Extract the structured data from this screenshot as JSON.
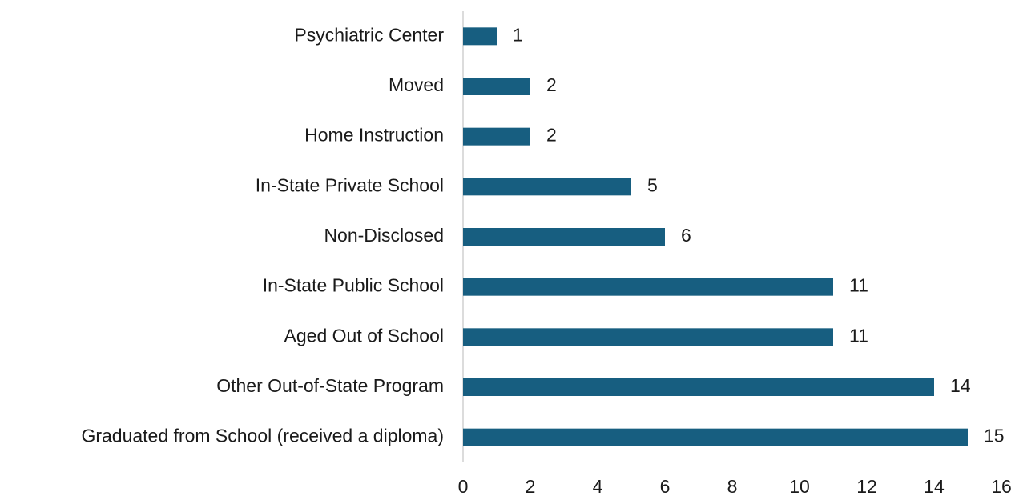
{
  "chart_data": {
    "type": "barh",
    "categories": [
      "Psychiatric Center",
      "Moved",
      "Home Instruction",
      "In-State Private School",
      "Non-Disclosed",
      "In-State Public School",
      "Aged Out of School",
      "Other Out-of-State Program",
      "Graduated from School (received a diploma)"
    ],
    "values": [
      1,
      2,
      2,
      5,
      6,
      11,
      11,
      14,
      15
    ],
    "color": "#175e80",
    "xlim": [
      0,
      16
    ],
    "xticks": [
      0,
      2,
      4,
      6,
      8,
      10,
      12,
      14,
      16
    ],
    "grid": false
  }
}
